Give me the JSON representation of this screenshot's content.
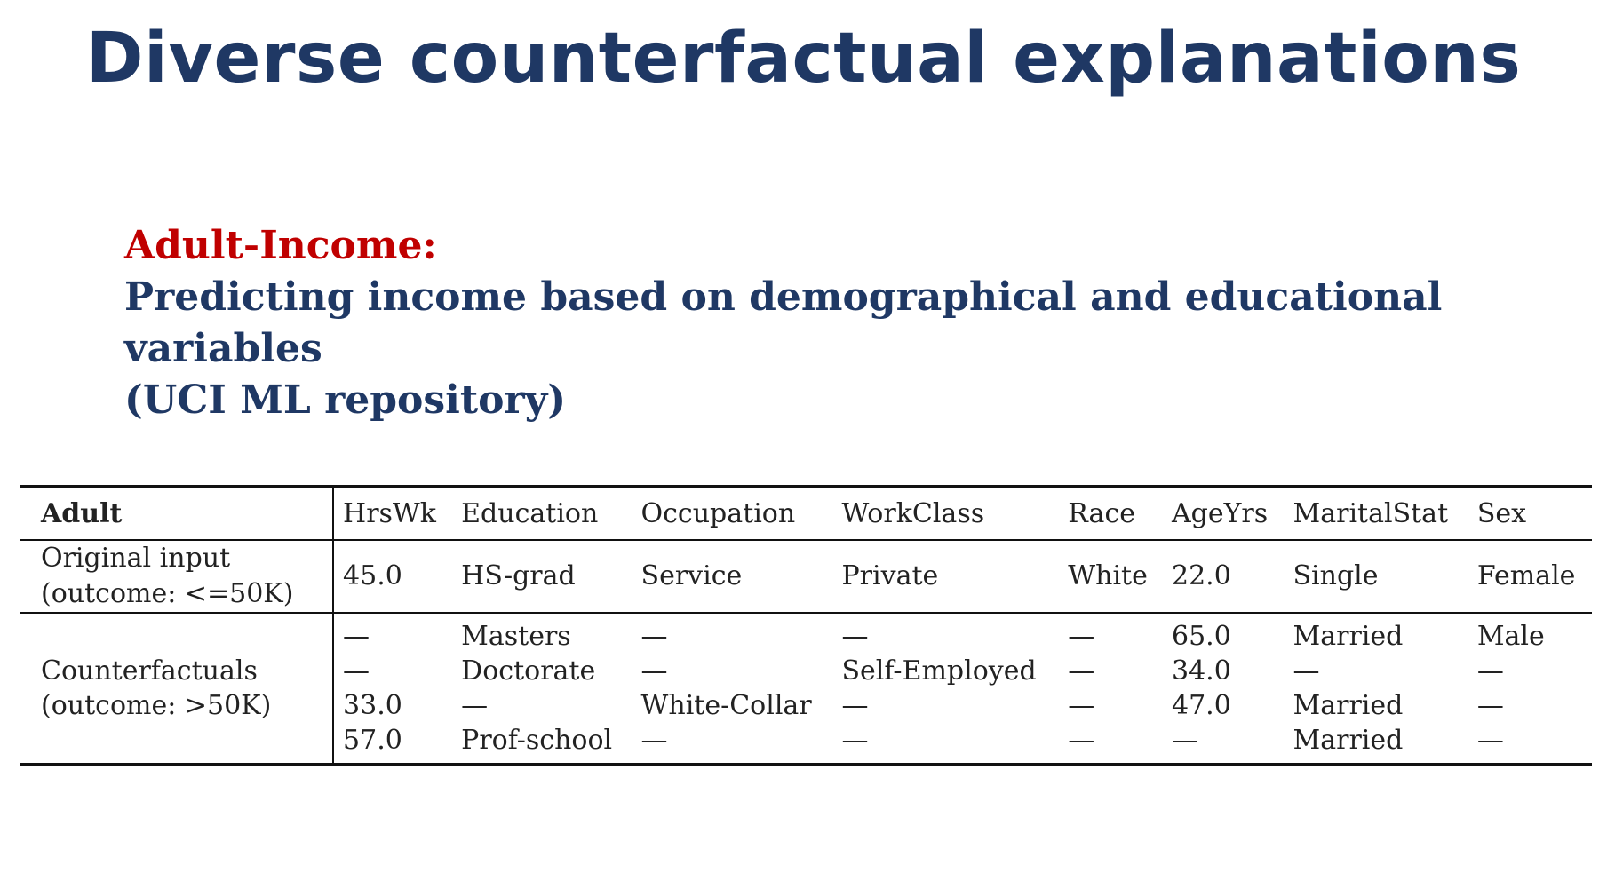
{
  "slide": {
    "title": "Diverse counterfactual explanations",
    "dataset_label": "Adult-Income:",
    "description_line1": "Predicting income based on demographical and educational variables",
    "description_line2": "(UCI ML repository)"
  },
  "table": {
    "header": {
      "first": "Adult",
      "columns": [
        "HrsWk",
        "Education",
        "Occupation",
        "WorkClass",
        "Race",
        "AgeYrs",
        "MaritalStat",
        "Sex"
      ]
    },
    "original": {
      "label_line1": "Original input",
      "label_line2": "(outcome: <=50K)",
      "values": [
        "45.0",
        "HS-grad",
        "Service",
        "Private",
        "White",
        "22.0",
        "Single",
        "Female"
      ]
    },
    "counterfactuals": {
      "label_line1": "Counterfactuals",
      "label_line2": "(outcome: >50K)",
      "rows": [
        [
          "—",
          "Masters",
          "—",
          "—",
          "—",
          "65.0",
          "Married",
          "Male"
        ],
        [
          "—",
          "Doctorate",
          "—",
          "Self-Employed",
          "—",
          "34.0",
          "—",
          "—"
        ],
        [
          "33.0",
          "—",
          "White-Collar",
          "—",
          "—",
          "47.0",
          "Married",
          "—"
        ],
        [
          "57.0",
          "Prof-school",
          "—",
          "—",
          "—",
          "—",
          "Married",
          "—"
        ]
      ]
    }
  }
}
